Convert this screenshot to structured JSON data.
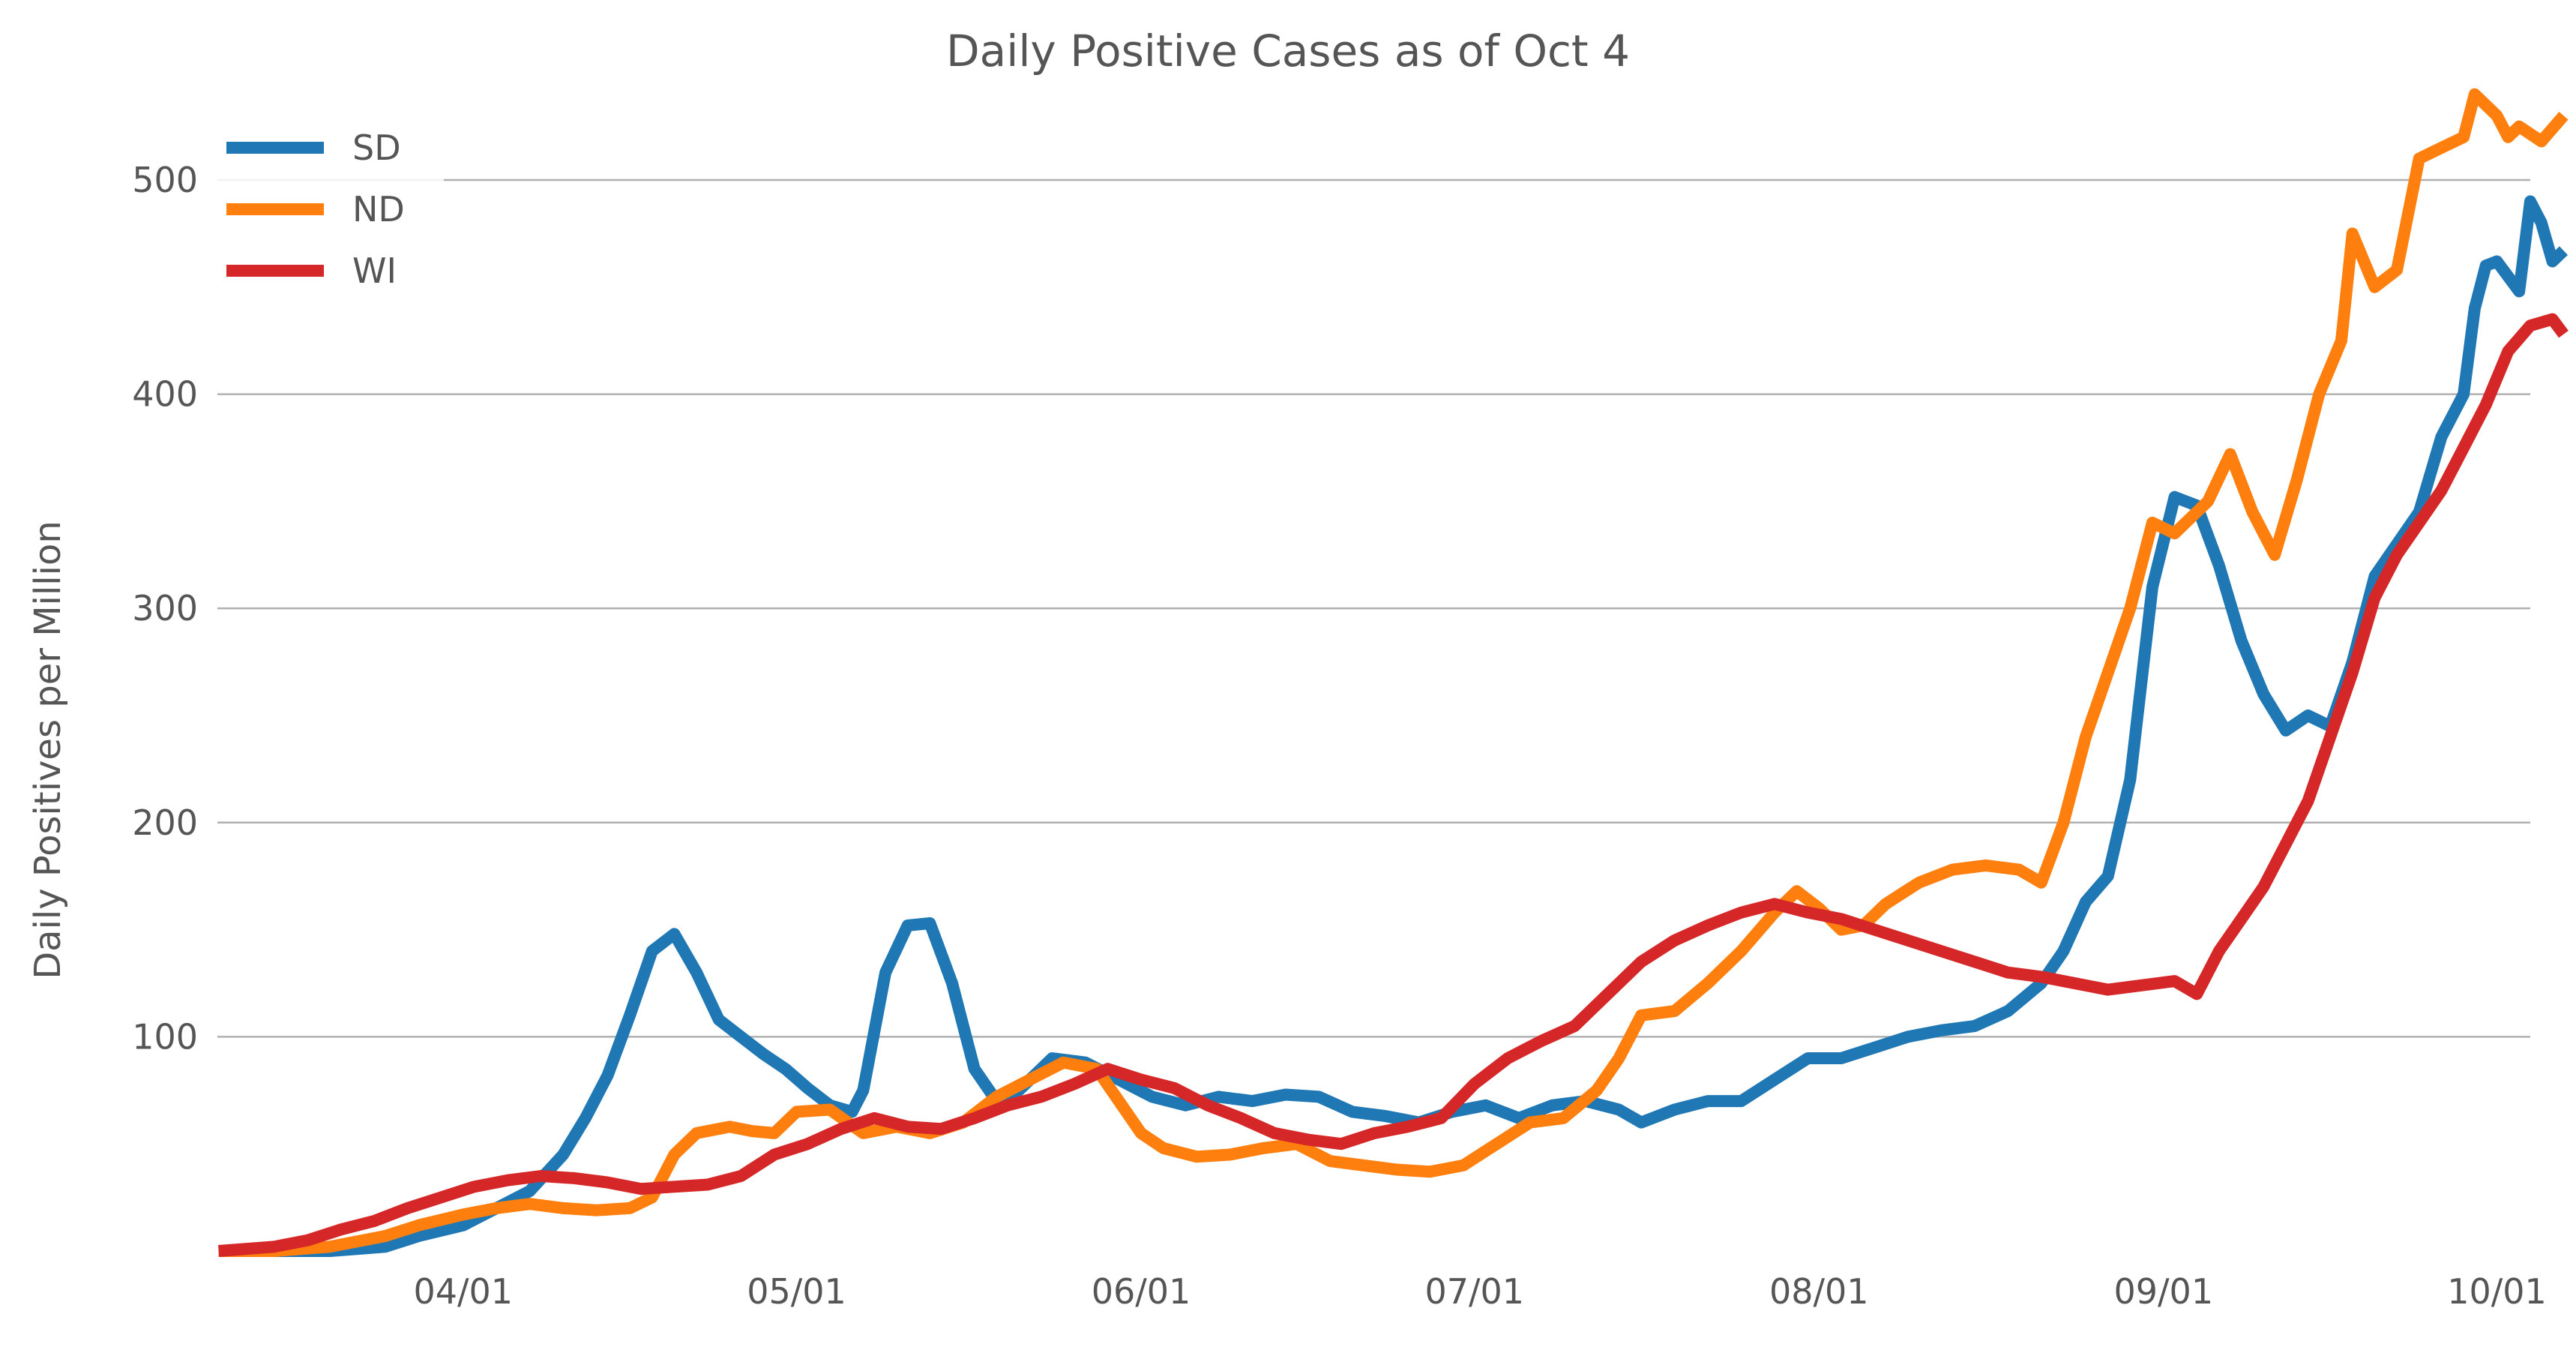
{
  "chart_data": {
    "type": "line",
    "title": "Daily Positive Cases as of Oct 4",
    "ylabel": "Daily Positives per Million",
    "xlabel": "",
    "x_type": "date",
    "xlim": [
      "2020-03-08",
      "2020-10-04"
    ],
    "ylim": [
      0,
      542
    ],
    "grid": "horizontal",
    "legend_position": "upper-left",
    "x_ticks": [
      "2020-04-01",
      "2020-05-01",
      "2020-06-01",
      "2020-07-01",
      "2020-08-01",
      "2020-09-01",
      "2020-10-01"
    ],
    "x_tick_labels": [
      "04/01",
      "05/01",
      "06/01",
      "07/01",
      "08/01",
      "09/01",
      "10/01"
    ],
    "y_ticks": [
      100,
      200,
      300,
      400,
      500
    ],
    "y_tick_labels": [
      "100",
      "200",
      "300",
      "400",
      "500"
    ],
    "series": [
      {
        "name": "SD",
        "color": "#1f77b4",
        "points": [
          [
            "2020-03-10",
            0
          ],
          [
            "2020-03-15",
            0
          ],
          [
            "2020-03-20",
            0
          ],
          [
            "2020-03-25",
            2
          ],
          [
            "2020-03-28",
            7
          ],
          [
            "2020-04-01",
            12
          ],
          [
            "2020-04-04",
            20
          ],
          [
            "2020-04-07",
            28
          ],
          [
            "2020-04-10",
            45
          ],
          [
            "2020-04-12",
            62
          ],
          [
            "2020-04-14",
            82
          ],
          [
            "2020-04-16",
            110
          ],
          [
            "2020-04-18",
            140
          ],
          [
            "2020-04-20",
            148
          ],
          [
            "2020-04-22",
            130
          ],
          [
            "2020-04-24",
            108
          ],
          [
            "2020-04-26",
            100
          ],
          [
            "2020-04-28",
            92
          ],
          [
            "2020-04-30",
            85
          ],
          [
            "2020-05-02",
            76
          ],
          [
            "2020-05-04",
            68
          ],
          [
            "2020-05-06",
            65
          ],
          [
            "2020-05-07",
            75
          ],
          [
            "2020-05-09",
            130
          ],
          [
            "2020-05-11",
            152
          ],
          [
            "2020-05-13",
            153
          ],
          [
            "2020-05-15",
            125
          ],
          [
            "2020-05-17",
            85
          ],
          [
            "2020-05-19",
            70
          ],
          [
            "2020-05-21",
            75
          ],
          [
            "2020-05-24",
            90
          ],
          [
            "2020-05-27",
            88
          ],
          [
            "2020-05-30",
            80
          ],
          [
            "2020-06-02",
            72
          ],
          [
            "2020-06-05",
            68
          ],
          [
            "2020-06-08",
            72
          ],
          [
            "2020-06-11",
            70
          ],
          [
            "2020-06-14",
            73
          ],
          [
            "2020-06-17",
            72
          ],
          [
            "2020-06-20",
            65
          ],
          [
            "2020-06-23",
            63
          ],
          [
            "2020-06-26",
            60
          ],
          [
            "2020-06-29",
            65
          ],
          [
            "2020-07-02",
            68
          ],
          [
            "2020-07-05",
            62
          ],
          [
            "2020-07-08",
            68
          ],
          [
            "2020-07-11",
            70
          ],
          [
            "2020-07-14",
            66
          ],
          [
            "2020-07-16",
            60
          ],
          [
            "2020-07-19",
            66
          ],
          [
            "2020-07-22",
            70
          ],
          [
            "2020-07-25",
            70
          ],
          [
            "2020-07-28",
            80
          ],
          [
            "2020-07-31",
            90
          ],
          [
            "2020-08-03",
            90
          ],
          [
            "2020-08-06",
            95
          ],
          [
            "2020-08-09",
            100
          ],
          [
            "2020-08-12",
            103
          ],
          [
            "2020-08-15",
            105
          ],
          [
            "2020-08-18",
            112
          ],
          [
            "2020-08-21",
            125
          ],
          [
            "2020-08-23",
            140
          ],
          [
            "2020-08-25",
            163
          ],
          [
            "2020-08-27",
            175
          ],
          [
            "2020-08-29",
            220
          ],
          [
            "2020-08-31",
            310
          ],
          [
            "2020-09-02",
            352
          ],
          [
            "2020-09-04",
            348
          ],
          [
            "2020-09-06",
            320
          ],
          [
            "2020-09-08",
            285
          ],
          [
            "2020-09-10",
            260
          ],
          [
            "2020-09-12",
            243
          ],
          [
            "2020-09-14",
            250
          ],
          [
            "2020-09-16",
            245
          ],
          [
            "2020-09-18",
            275
          ],
          [
            "2020-09-20",
            315
          ],
          [
            "2020-09-22",
            330
          ],
          [
            "2020-09-24",
            345
          ],
          [
            "2020-09-26",
            380
          ],
          [
            "2020-09-28",
            400
          ],
          [
            "2020-09-29",
            440
          ],
          [
            "2020-09-30",
            460
          ],
          [
            "2020-10-01",
            462
          ],
          [
            "2020-10-03",
            448
          ],
          [
            "2020-10-04",
            490
          ],
          [
            "2020-10-05",
            480
          ],
          [
            "2020-10-06",
            462
          ],
          [
            "2020-10-07",
            467
          ]
        ]
      },
      {
        "name": "ND",
        "color": "#ff7f0e",
        "points": [
          [
            "2020-03-10",
            0
          ],
          [
            "2020-03-15",
            0
          ],
          [
            "2020-03-20",
            2
          ],
          [
            "2020-03-25",
            7
          ],
          [
            "2020-03-28",
            12
          ],
          [
            "2020-04-01",
            17
          ],
          [
            "2020-04-04",
            20
          ],
          [
            "2020-04-07",
            22
          ],
          [
            "2020-04-10",
            20
          ],
          [
            "2020-04-13",
            19
          ],
          [
            "2020-04-16",
            20
          ],
          [
            "2020-04-18",
            25
          ],
          [
            "2020-04-20",
            45
          ],
          [
            "2020-04-22",
            55
          ],
          [
            "2020-04-25",
            58
          ],
          [
            "2020-04-27",
            56
          ],
          [
            "2020-04-29",
            55
          ],
          [
            "2020-05-01",
            65
          ],
          [
            "2020-05-04",
            66
          ],
          [
            "2020-05-07",
            55
          ],
          [
            "2020-05-10",
            58
          ],
          [
            "2020-05-13",
            55
          ],
          [
            "2020-05-16",
            60
          ],
          [
            "2020-05-19",
            72
          ],
          [
            "2020-05-22",
            80
          ],
          [
            "2020-05-25",
            88
          ],
          [
            "2020-05-28",
            85
          ],
          [
            "2020-05-30",
            70
          ],
          [
            "2020-06-01",
            55
          ],
          [
            "2020-06-03",
            48
          ],
          [
            "2020-06-06",
            44
          ],
          [
            "2020-06-09",
            45
          ],
          [
            "2020-06-12",
            48
          ],
          [
            "2020-06-15",
            50
          ],
          [
            "2020-06-18",
            42
          ],
          [
            "2020-06-21",
            40
          ],
          [
            "2020-06-24",
            38
          ],
          [
            "2020-06-27",
            37
          ],
          [
            "2020-06-30",
            40
          ],
          [
            "2020-07-03",
            50
          ],
          [
            "2020-07-06",
            60
          ],
          [
            "2020-07-09",
            62
          ],
          [
            "2020-07-12",
            75
          ],
          [
            "2020-07-14",
            90
          ],
          [
            "2020-07-16",
            110
          ],
          [
            "2020-07-19",
            112
          ],
          [
            "2020-07-22",
            125
          ],
          [
            "2020-07-25",
            140
          ],
          [
            "2020-07-28",
            158
          ],
          [
            "2020-07-30",
            168
          ],
          [
            "2020-08-01",
            160
          ],
          [
            "2020-08-03",
            150
          ],
          [
            "2020-08-05",
            152
          ],
          [
            "2020-08-07",
            162
          ],
          [
            "2020-08-10",
            172
          ],
          [
            "2020-08-13",
            178
          ],
          [
            "2020-08-16",
            180
          ],
          [
            "2020-08-19",
            178
          ],
          [
            "2020-08-21",
            172
          ],
          [
            "2020-08-23",
            200
          ],
          [
            "2020-08-25",
            240
          ],
          [
            "2020-08-27",
            270
          ],
          [
            "2020-08-29",
            300
          ],
          [
            "2020-08-31",
            340
          ],
          [
            "2020-09-02",
            335
          ],
          [
            "2020-09-05",
            350
          ],
          [
            "2020-09-07",
            372
          ],
          [
            "2020-09-09",
            345
          ],
          [
            "2020-09-11",
            325
          ],
          [
            "2020-09-13",
            360
          ],
          [
            "2020-09-15",
            400
          ],
          [
            "2020-09-17",
            425
          ],
          [
            "2020-09-18",
            475
          ],
          [
            "2020-09-20",
            450
          ],
          [
            "2020-09-22",
            458
          ],
          [
            "2020-09-24",
            510
          ],
          [
            "2020-09-26",
            515
          ],
          [
            "2020-09-28",
            520
          ],
          [
            "2020-09-29",
            540
          ],
          [
            "2020-10-01",
            530
          ],
          [
            "2020-10-02",
            520
          ],
          [
            "2020-10-03",
            525
          ],
          [
            "2020-10-05",
            518
          ],
          [
            "2020-10-07",
            530
          ]
        ]
      },
      {
        "name": "WI",
        "color": "#d62728",
        "points": [
          [
            "2020-03-10",
            0
          ],
          [
            "2020-03-15",
            2
          ],
          [
            "2020-03-18",
            5
          ],
          [
            "2020-03-21",
            10
          ],
          [
            "2020-03-24",
            14
          ],
          [
            "2020-03-27",
            20
          ],
          [
            "2020-03-30",
            25
          ],
          [
            "2020-04-02",
            30
          ],
          [
            "2020-04-05",
            33
          ],
          [
            "2020-04-08",
            35
          ],
          [
            "2020-04-11",
            34
          ],
          [
            "2020-04-14",
            32
          ],
          [
            "2020-04-17",
            29
          ],
          [
            "2020-04-20",
            30
          ],
          [
            "2020-04-23",
            31
          ],
          [
            "2020-04-26",
            35
          ],
          [
            "2020-04-29",
            45
          ],
          [
            "2020-05-02",
            50
          ],
          [
            "2020-05-05",
            57
          ],
          [
            "2020-05-08",
            62
          ],
          [
            "2020-05-11",
            58
          ],
          [
            "2020-05-14",
            57
          ],
          [
            "2020-05-17",
            62
          ],
          [
            "2020-05-20",
            68
          ],
          [
            "2020-05-23",
            72
          ],
          [
            "2020-05-26",
            78
          ],
          [
            "2020-05-29",
            85
          ],
          [
            "2020-06-01",
            80
          ],
          [
            "2020-06-04",
            76
          ],
          [
            "2020-06-07",
            68
          ],
          [
            "2020-06-10",
            62
          ],
          [
            "2020-06-13",
            55
          ],
          [
            "2020-06-16",
            52
          ],
          [
            "2020-06-19",
            50
          ],
          [
            "2020-06-22",
            55
          ],
          [
            "2020-06-25",
            58
          ],
          [
            "2020-06-28",
            62
          ],
          [
            "2020-07-01",
            78
          ],
          [
            "2020-07-04",
            90
          ],
          [
            "2020-07-07",
            98
          ],
          [
            "2020-07-10",
            105
          ],
          [
            "2020-07-13",
            120
          ],
          [
            "2020-07-16",
            135
          ],
          [
            "2020-07-19",
            145
          ],
          [
            "2020-07-22",
            152
          ],
          [
            "2020-07-25",
            158
          ],
          [
            "2020-07-28",
            162
          ],
          [
            "2020-07-31",
            158
          ],
          [
            "2020-08-03",
            155
          ],
          [
            "2020-08-06",
            150
          ],
          [
            "2020-08-09",
            145
          ],
          [
            "2020-08-12",
            140
          ],
          [
            "2020-08-15",
            135
          ],
          [
            "2020-08-18",
            130
          ],
          [
            "2020-08-21",
            128
          ],
          [
            "2020-08-24",
            125
          ],
          [
            "2020-08-27",
            122
          ],
          [
            "2020-08-30",
            124
          ],
          [
            "2020-09-02",
            126
          ],
          [
            "2020-09-04",
            120
          ],
          [
            "2020-09-06",
            140
          ],
          [
            "2020-09-08",
            155
          ],
          [
            "2020-09-10",
            170
          ],
          [
            "2020-09-12",
            190
          ],
          [
            "2020-09-14",
            210
          ],
          [
            "2020-09-16",
            240
          ],
          [
            "2020-09-18",
            270
          ],
          [
            "2020-09-20",
            305
          ],
          [
            "2020-09-22",
            325
          ],
          [
            "2020-09-24",
            340
          ],
          [
            "2020-09-26",
            355
          ],
          [
            "2020-09-28",
            375
          ],
          [
            "2020-09-30",
            395
          ],
          [
            "2020-10-02",
            420
          ],
          [
            "2020-10-04",
            432
          ],
          [
            "2020-10-06",
            435
          ],
          [
            "2020-10-07",
            428
          ]
        ]
      }
    ]
  }
}
